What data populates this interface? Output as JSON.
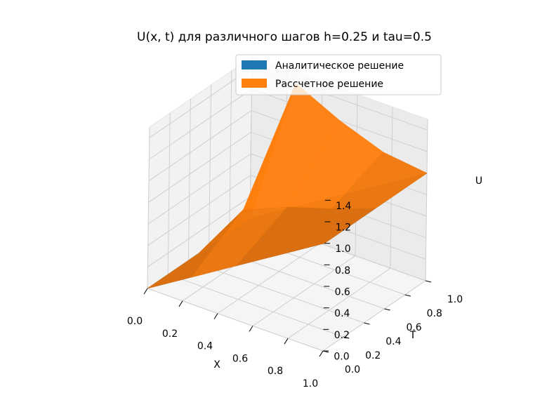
{
  "chart_data": {
    "type": "surface3d",
    "title": "U(x, t) для различного шагов h=0.25 и tau=0.5",
    "xlabel": "X",
    "ylabel": "T",
    "zlabel": "U",
    "xlim": [
      0,
      1
    ],
    "ylim": [
      0,
      1
    ],
    "zlim": [
      0,
      1.5
    ],
    "x_ticks": [
      "0.0",
      "0.2",
      "0.4",
      "0.6",
      "0.8",
      "1.0"
    ],
    "y_ticks": [
      "0.0",
      "0.2",
      "0.4",
      "0.6",
      "0.8",
      "1.0"
    ],
    "z_ticks": [
      "0.0",
      "0.2",
      "0.4",
      "0.6",
      "0.8",
      "1.0",
      "1.2",
      "1.4"
    ],
    "grid": true,
    "legend_position": "top-right",
    "x": [
      0,
      0.25,
      0.5,
      0.75,
      1.0
    ],
    "t": [
      0,
      0.5,
      1.0
    ],
    "series": [
      {
        "name": "Аналитическое решение",
        "color": "#1f77b4",
        "values": [
          [
            0.0,
            0.25,
            0.5,
            0.75,
            1.0
          ],
          [
            0.0,
            0.25,
            0.5,
            0.75,
            1.0
          ],
          [
            0.0,
            0.25,
            0.5,
            0.75,
            1.0
          ]
        ]
      },
      {
        "name": "Рассчетное решение",
        "color": "#ff7f0e",
        "values": [
          [
            0.0,
            0.25,
            0.5,
            0.75,
            1.0
          ],
          [
            0.0,
            0.55,
            0.72,
            0.85,
            1.0
          ],
          [
            0.0,
            1.4,
            1.2,
            1.05,
            1.0
          ]
        ]
      }
    ]
  }
}
